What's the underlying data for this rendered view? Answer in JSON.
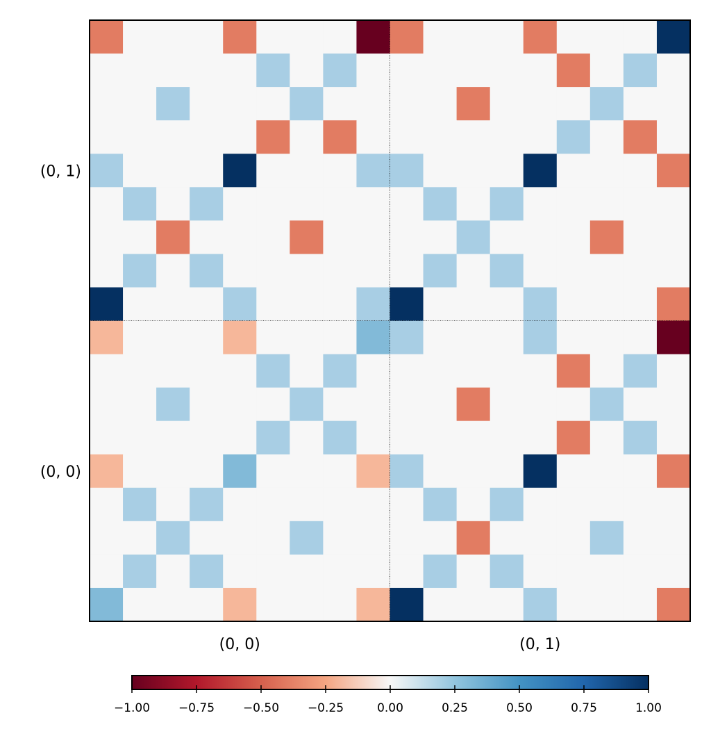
{
  "chart_data": {
    "type": "heatmap",
    "rows": 18,
    "cols": 18,
    "matrix": [
      [
        -0.4,
        0,
        0,
        0,
        -0.4,
        0,
        0,
        0,
        -1,
        -0.4,
        0,
        0,
        0,
        -0.4,
        0,
        0,
        0,
        1
      ],
      [
        0,
        0,
        0,
        0,
        0,
        0.4,
        0,
        0.4,
        0,
        0,
        0,
        0,
        0,
        0,
        -0.4,
        0,
        0.4,
        0
      ],
      [
        0,
        0,
        0.4,
        0,
        0,
        0,
        0.4,
        0,
        0,
        0,
        0,
        -0.4,
        0,
        0,
        0,
        0.4,
        0,
        0
      ],
      [
        0,
        0,
        0,
        0,
        0,
        -0.4,
        0,
        -0.4,
        0,
        0,
        0,
        0,
        0,
        0,
        0.4,
        0,
        -0.4,
        0
      ],
      [
        0.4,
        0,
        0,
        0,
        1,
        0,
        0,
        0,
        0.4,
        0.4,
        0,
        0,
        0,
        1,
        0,
        0,
        0,
        -0.4
      ],
      [
        0,
        0.4,
        0,
        0.4,
        0,
        0,
        0,
        0,
        0,
        0,
        0.4,
        0,
        0.4,
        0,
        0,
        0,
        0,
        0
      ],
      [
        0,
        0,
        -0.4,
        0,
        0,
        0,
        -0.4,
        0,
        0,
        0,
        0,
        0.4,
        0,
        0,
        0,
        -0.4,
        0,
        0
      ],
      [
        0,
        0.4,
        0,
        0.4,
        0,
        0,
        0,
        0,
        0,
        0,
        0.4,
        0,
        0.4,
        0,
        0,
        0,
        0,
        0
      ],
      [
        1,
        0,
        0,
        0,
        0.4,
        0,
        0,
        0,
        0.4,
        1,
        0,
        0,
        0,
        0.4,
        0,
        0,
        0,
        -0.4
      ],
      [
        -0.2,
        0,
        0,
        0,
        -0.2,
        0,
        0,
        0,
        0.5,
        0.4,
        0,
        0,
        0,
        0.4,
        0,
        0,
        0,
        -1
      ],
      [
        0,
        0,
        0,
        0,
        0,
        0.4,
        0,
        0.4,
        0,
        0,
        0,
        0,
        0,
        0,
        -0.4,
        0,
        0.4,
        0
      ],
      [
        0,
        0,
        0.4,
        0,
        0,
        0,
        0.4,
        0,
        0,
        0,
        0,
        -0.4,
        0,
        0,
        0,
        0.4,
        0,
        0
      ],
      [
        0,
        0,
        0,
        0,
        0,
        0.4,
        0,
        0.4,
        0,
        0,
        0,
        0,
        0,
        0,
        -0.4,
        0,
        0.4,
        0
      ],
      [
        -0.2,
        0,
        0,
        0,
        0.5,
        0,
        0,
        0,
        -0.2,
        0.4,
        0,
        0,
        0,
        1,
        0,
        0,
        0,
        -0.4
      ],
      [
        0,
        0.4,
        0,
        0.4,
        0,
        0,
        0,
        0,
        0,
        0,
        0.4,
        0,
        0.4,
        0,
        0,
        0,
        0,
        0
      ],
      [
        0,
        0,
        0.4,
        0,
        0,
        0,
        0.4,
        0,
        0,
        0,
        0,
        -0.4,
        0,
        0,
        0,
        0.4,
        0,
        0
      ],
      [
        0,
        0.4,
        0,
        0.4,
        0,
        0,
        0,
        0,
        0,
        0,
        0.4,
        0,
        0.4,
        0,
        0,
        0,
        0,
        0
      ],
      [
        0.5,
        0,
        0,
        0,
        -0.2,
        0,
        0,
        0,
        -0.2,
        1,
        0,
        0,
        0,
        0.4,
        0,
        0,
        0,
        -0.4
      ]
    ],
    "x_tick_labels": [
      "(0, 0)",
      "(0, 1)"
    ],
    "y_tick_labels": [
      "(0, 1)",
      "(0, 0)"
    ],
    "title": "",
    "xlabel": "",
    "ylabel": "",
    "divider_lines": true,
    "colormap": "RdBu",
    "colorbar": {
      "min": -1.0,
      "max": 1.0,
      "orientation": "horizontal",
      "placement": "bottom",
      "tick_values": [
        -1.0,
        -0.75,
        -0.5,
        -0.25,
        0.0,
        0.25,
        0.5,
        0.75,
        1.0
      ],
      "tick_labels": [
        "−1.00",
        "−0.75",
        "−0.50",
        "−0.25",
        "0.00",
        "0.25",
        "0.50",
        "0.75",
        "1.00"
      ]
    },
    "colors": {
      "neg_1": "#67001f",
      "neg_75": "#b2182b",
      "neg_50": "#d6604d",
      "neg_25": "#f4a582",
      "zero": "#f7f7f7",
      "pos_25": "#92c5de",
      "pos_50": "#4393c3",
      "pos_75": "#2166ac",
      "pos_1": "#053061"
    }
  }
}
